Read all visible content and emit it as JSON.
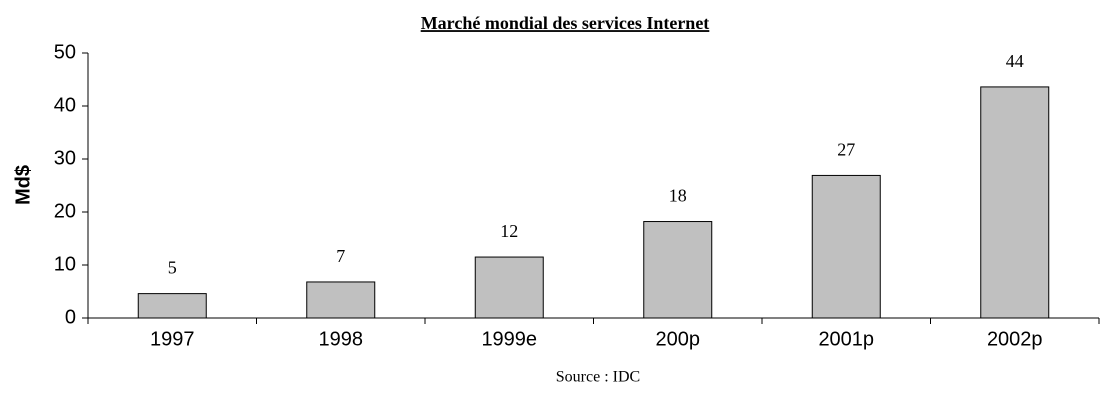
{
  "chart_data": {
    "type": "bar",
    "title": "Marché mondial des services Internet",
    "ylabel": "Md$",
    "source": "Source : IDC",
    "categories": [
      "1997",
      "1998",
      "1999e",
      "200p",
      "2001p",
      "2002p"
    ],
    "values": [
      4.6,
      6.8,
      11.5,
      18.2,
      26.9,
      43.6
    ],
    "value_labels": [
      "5",
      "7",
      "12",
      "18",
      "27",
      "44"
    ],
    "color": "#c0c0c0",
    "ylim": [
      0,
      50
    ],
    "yticks": [
      0,
      10,
      20,
      30,
      40,
      50
    ],
    "grid": false
  }
}
